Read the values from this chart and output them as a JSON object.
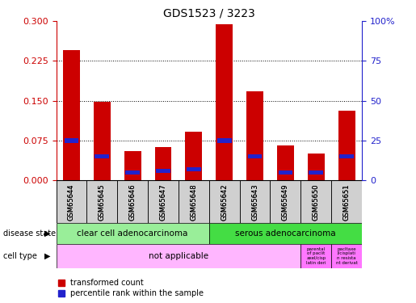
{
  "title": "GDS1523 / 3223",
  "samples": [
    "GSM65644",
    "GSM65645",
    "GSM65646",
    "GSM65647",
    "GSM65648",
    "GSM65642",
    "GSM65643",
    "GSM65649",
    "GSM65650",
    "GSM65651"
  ],
  "red_values": [
    0.245,
    0.148,
    0.055,
    0.062,
    0.092,
    0.295,
    0.168,
    0.065,
    0.05,
    0.132
  ],
  "blue_values_pct": [
    25,
    15,
    5,
    6,
    7,
    25,
    15,
    5,
    5,
    15
  ],
  "ylim_left": [
    0,
    0.3
  ],
  "ylim_right": [
    0,
    100
  ],
  "yticks_left": [
    0,
    0.075,
    0.15,
    0.225,
    0.3
  ],
  "yticks_right": [
    0,
    25,
    50,
    75,
    100
  ],
  "grid_values": [
    0.075,
    0.15,
    0.225
  ],
  "disease_state_groups": [
    {
      "label": "clear cell adenocarcinoma",
      "start": 0,
      "end": 5,
      "color": "#99EE99"
    },
    {
      "label": "serous adenocarcinoma",
      "start": 5,
      "end": 10,
      "color": "#44DD44"
    }
  ],
  "bar_width": 0.55,
  "red_color": "#CC0000",
  "blue_color": "#2222CC",
  "label_red": "transformed count",
  "label_blue": "percentile rank within the sample",
  "left_tick_color": "#CC0000",
  "right_tick_color": "#2222CC",
  "sample_box_color": "#D0D0D0",
  "cell_type_pink_light": "#FFB6FF",
  "cell_type_pink_dark": "#FF77FF"
}
